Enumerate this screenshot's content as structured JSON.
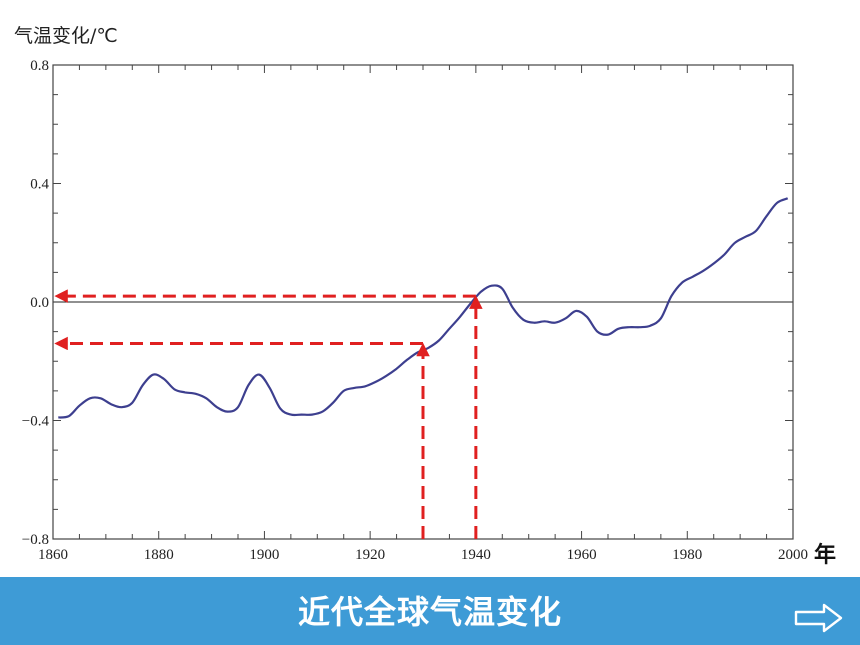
{
  "chart_data": {
    "type": "line",
    "ylabel": "气温变化/℃",
    "xunit": "年",
    "xlim": [
      1860,
      2000
    ],
    "ylim": [
      -0.8,
      0.8
    ],
    "x_ticks": [
      1860,
      1880,
      1900,
      1920,
      1940,
      1960,
      1980,
      2000
    ],
    "y_ticks": [
      {
        "value": 0.8,
        "label": "0.8"
      },
      {
        "value": 0.4,
        "label": "0.4"
      },
      {
        "value": 0.0,
        "label": "0.0"
      },
      {
        "value": -0.4,
        "label": "−0.4"
      },
      {
        "value": -0.8,
        "label": "−0.8"
      }
    ],
    "series": [
      {
        "color": "#3d3f8f",
        "x": [
          1861,
          1863,
          1865,
          1867,
          1869,
          1871,
          1873,
          1875,
          1877,
          1879,
          1881,
          1883,
          1885,
          1887,
          1889,
          1891,
          1893,
          1895,
          1897,
          1899,
          1901,
          1903,
          1905,
          1907,
          1909,
          1911,
          1913,
          1915,
          1917,
          1919,
          1921,
          1923,
          1925,
          1927,
          1929,
          1931,
          1933,
          1935,
          1937,
          1939,
          1941,
          1943,
          1945,
          1947,
          1949,
          1951,
          1953,
          1955,
          1957,
          1959,
          1961,
          1963,
          1965,
          1967,
          1969,
          1971,
          1973,
          1975,
          1977,
          1979,
          1981,
          1983,
          1985,
          1987,
          1989,
          1991,
          1993,
          1995,
          1997,
          1999
        ],
        "y": [
          -0.39,
          -0.385,
          -0.35,
          -0.325,
          -0.325,
          -0.345,
          -0.355,
          -0.34,
          -0.28,
          -0.245,
          -0.26,
          -0.295,
          -0.305,
          -0.31,
          -0.325,
          -0.355,
          -0.37,
          -0.355,
          -0.28,
          -0.245,
          -0.29,
          -0.36,
          -0.38,
          -0.38,
          -0.38,
          -0.37,
          -0.34,
          -0.3,
          -0.29,
          -0.285,
          -0.27,
          -0.25,
          -0.225,
          -0.195,
          -0.17,
          -0.155,
          -0.13,
          -0.09,
          -0.05,
          -0.005,
          0.035,
          0.055,
          0.045,
          -0.02,
          -0.06,
          -0.07,
          -0.065,
          -0.07,
          -0.055,
          -0.03,
          -0.05,
          -0.1,
          -0.11,
          -0.09,
          -0.085,
          -0.085,
          -0.08,
          -0.055,
          0.02,
          0.065,
          0.085,
          0.105,
          0.13,
          0.16,
          0.2,
          0.22,
          0.24,
          0.29,
          0.335,
          0.35
        ]
      }
    ],
    "annotations": [
      {
        "type": "dashed-arrow-guide",
        "color": "#e02020",
        "x": 1930,
        "y": -0.14
      },
      {
        "type": "dashed-arrow-guide",
        "color": "#e02020",
        "x": 1940,
        "y": 0.02
      }
    ],
    "zero_line": true,
    "grid": false,
    "legend": "none"
  },
  "footer": {
    "title": "近代全球气温变化",
    "background": "#3e9bd6",
    "next_icon": "right-arrow-icon"
  }
}
